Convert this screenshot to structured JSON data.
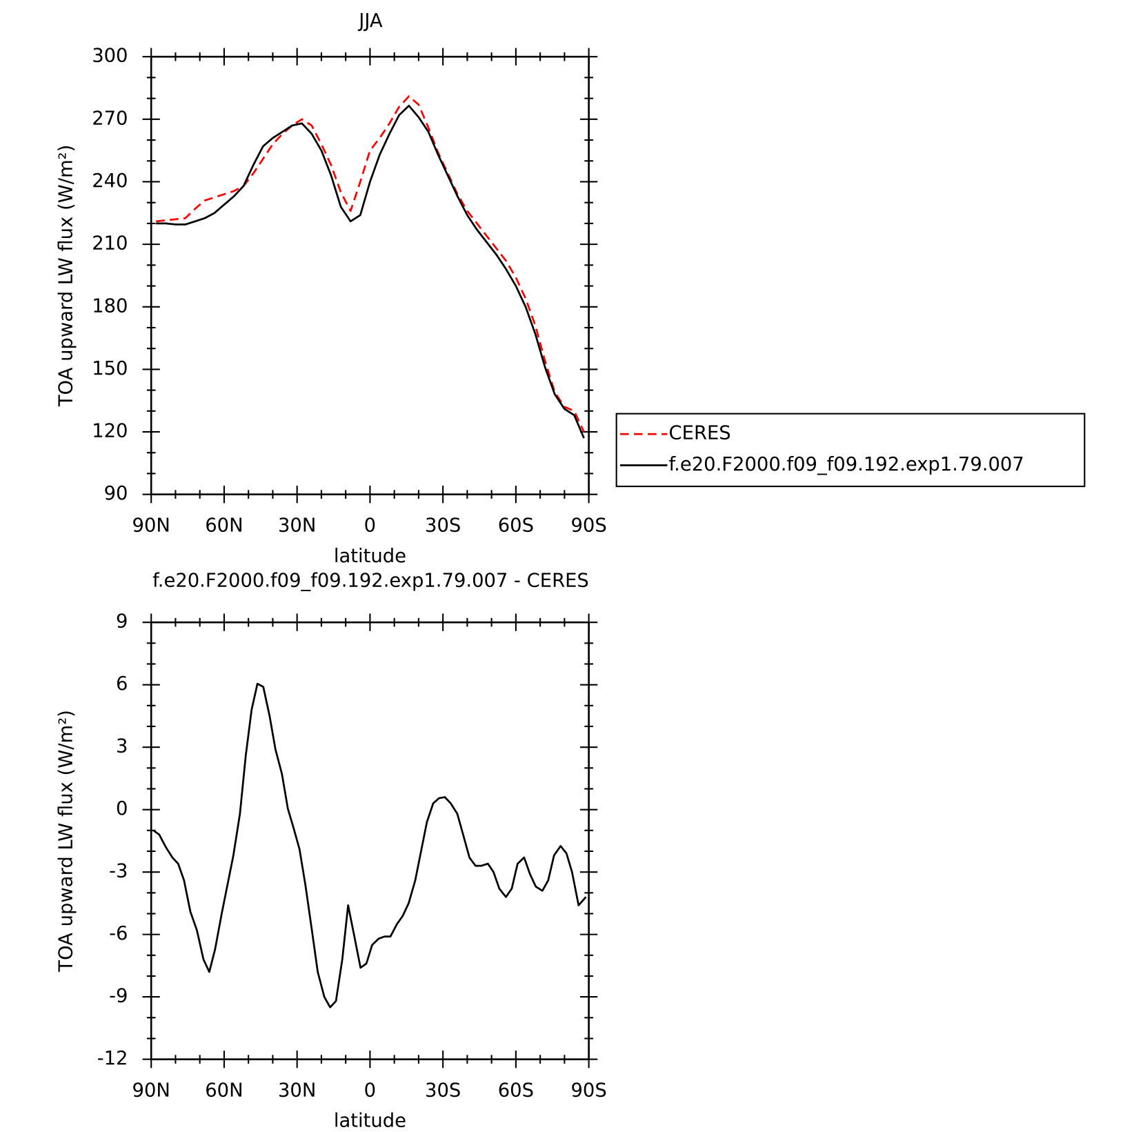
{
  "chart_data": [
    {
      "type": "line",
      "title": "JJA",
      "x_label": "latitude",
      "y_label": "TOA upward LW flux (W/m²)",
      "x": [
        88,
        84,
        80,
        76,
        72,
        68,
        64,
        60,
        56,
        52,
        48,
        44,
        40,
        36,
        32,
        28,
        24,
        20,
        16,
        12,
        8,
        4,
        0,
        -4,
        -8,
        -12,
        -16,
        -20,
        -24,
        -28,
        -32,
        -36,
        -40,
        -44,
        -48,
        -52,
        -56,
        -60,
        -64,
        -68,
        -72,
        -76,
        -80,
        -84,
        -88
      ],
      "xlim": [
        90,
        -90
      ],
      "xticks": [
        {
          "value": 90,
          "label": "90N"
        },
        {
          "value": 60,
          "label": "60N"
        },
        {
          "value": 30,
          "label": "30N"
        },
        0,
        {
          "value": -30,
          "label": "30S"
        },
        {
          "value": -60,
          "label": "60S"
        },
        {
          "value": -90,
          "label": "90S"
        }
      ],
      "ylim": [
        90,
        300
      ],
      "yticks": [
        90,
        120,
        150,
        180,
        210,
        240,
        270,
        300
      ],
      "legend": "right",
      "series": [
        {
          "name": "CERES",
          "color": "#ff0000",
          "style": "dashed",
          "values": [
            221,
            221.5,
            222,
            222.5,
            227,
            231,
            232.5,
            234,
            235.5,
            238,
            244,
            251,
            258,
            263,
            267,
            270,
            267,
            258,
            248,
            235,
            226,
            240,
            255,
            261,
            268,
            276,
            281,
            277,
            266,
            254,
            244,
            234,
            226,
            220,
            214,
            208,
            202,
            194,
            184,
            171,
            154,
            139,
            132,
            130,
            120
          ]
        },
        {
          "name": "f.e20.F2000.f09_f09.192.exp1.79.007",
          "color": "#000000",
          "style": "solid",
          "values": [
            220,
            220,
            219.5,
            219.5,
            221,
            222.5,
            225,
            229,
            233,
            238,
            248,
            257,
            261,
            264,
            267,
            268,
            263,
            255,
            243,
            228,
            221,
            224,
            240,
            253,
            263,
            272,
            276.5,
            271,
            264,
            253,
            243,
            233,
            224,
            217,
            211,
            205,
            198,
            190,
            180,
            167,
            151,
            138,
            131,
            128,
            117
          ]
        }
      ]
    },
    {
      "type": "line",
      "title": "f.e20.F2000.f09_f09.192.exp1.79.007 - CERES",
      "x_label": "latitude",
      "y_label": "TOA upward LW flux (W/m²)",
      "x": [
        89.1,
        86.7,
        84.0,
        81.3,
        78.9,
        76.5,
        73.9,
        71.2,
        68.5,
        66.1,
        63.7,
        61.0,
        58.6,
        56.2,
        53.5,
        51.1,
        48.7,
        46.3,
        43.9,
        41.3,
        38.9,
        36.2,
        33.8,
        31.4,
        29.0,
        26.6,
        23.9,
        21.5,
        18.8,
        16.4,
        14.0,
        11.4,
        9.0,
        6.6,
        3.9,
        1.5,
        -0.9,
        -3.6,
        -6.0,
        -8.4,
        -11.1,
        -13.5,
        -15.9,
        -18.6,
        -21.0,
        -23.4,
        -26.0,
        -28.4,
        -30.8,
        -33.2,
        -35.9,
        -38.3,
        -40.9,
        -43.4,
        -45.8,
        -48.5,
        -50.8,
        -53.2,
        -55.9,
        -58.3,
        -60.7,
        -63.4,
        -65.8,
        -68.2,
        -70.9,
        -73.3,
        -75.7,
        -78.4,
        -80.8,
        -83.1,
        -85.8,
        -88.8
      ],
      "xlim": [
        90,
        -90
      ],
      "xticks": [
        {
          "value": 90,
          "label": "90N"
        },
        {
          "value": 60,
          "label": "60N"
        },
        {
          "value": 30,
          "label": "30N"
        },
        0,
        {
          "value": -30,
          "label": "30S"
        },
        {
          "value": -60,
          "label": "60S"
        },
        {
          "value": -90,
          "label": "90S"
        }
      ],
      "ylim": [
        -12,
        9
      ],
      "yticks": [
        -12,
        -9,
        -6,
        -3,
        0,
        3,
        6,
        9
      ],
      "color": "#000000",
      "values": [
        -1.0,
        -1.2,
        -1.8,
        -2.3,
        -2.6,
        -3.4,
        -4.9,
        -5.8,
        -7.2,
        -7.8,
        -6.7,
        -5.0,
        -3.6,
        -2.2,
        -0.2,
        2.6,
        4.8,
        6.05,
        5.9,
        4.5,
        2.9,
        1.7,
        0.05,
        -0.9,
        -1.9,
        -3.6,
        -5.8,
        -7.8,
        -9.0,
        -9.5,
        -9.2,
        -7.2,
        -4.6,
        -6.0,
        -7.6,
        -7.4,
        -6.5,
        -6.2,
        -6.1,
        -6.1,
        -5.5,
        -5.1,
        -4.5,
        -3.4,
        -2.0,
        -0.6,
        0.3,
        0.55,
        0.6,
        0.3,
        -0.2,
        -1.2,
        -2.3,
        -2.7,
        -2.7,
        -2.6,
        -3.0,
        -3.8,
        -4.2,
        -3.8,
        -2.6,
        -2.3,
        -3.1,
        -3.7,
        -3.9,
        -3.4,
        -2.2,
        -1.75,
        -2.1,
        -3.0,
        -4.6,
        -4.2
      ]
    }
  ]
}
